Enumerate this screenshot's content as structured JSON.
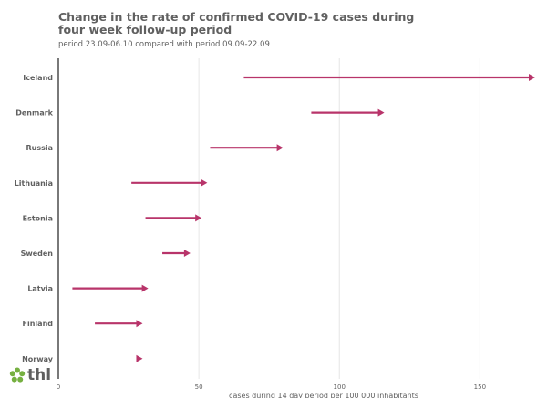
{
  "chart_data": {
    "type": "arrow-dumbbell",
    "title": "Change in the rate of confirmed COVID-19 cases during four week follow-up period",
    "subtitle": "period 23.09-06.10 compared with period 09.09-22.09",
    "xlabel": "cases during 14 day period per 100 000 inhabitants",
    "xlim": [
      0,
      170
    ],
    "xticks": [
      0,
      50,
      100,
      150
    ],
    "grid": true,
    "series_color": "#b8346a",
    "categories": [
      "Iceland",
      "Denmark",
      "Russia",
      "Lithuania",
      "Estonia",
      "Sweden",
      "Latvia",
      "Finland",
      "Norway"
    ],
    "series": [
      {
        "name": "period 09.09-22.09",
        "values": [
          66,
          90,
          54,
          26,
          31,
          37,
          5,
          13,
          28
        ]
      },
      {
        "name": "period 23.09-06.10",
        "values": [
          170,
          116,
          80,
          53,
          51,
          47,
          32,
          30,
          30
        ]
      }
    ]
  },
  "logo": {
    "text": "thl",
    "color": "#76b041"
  }
}
